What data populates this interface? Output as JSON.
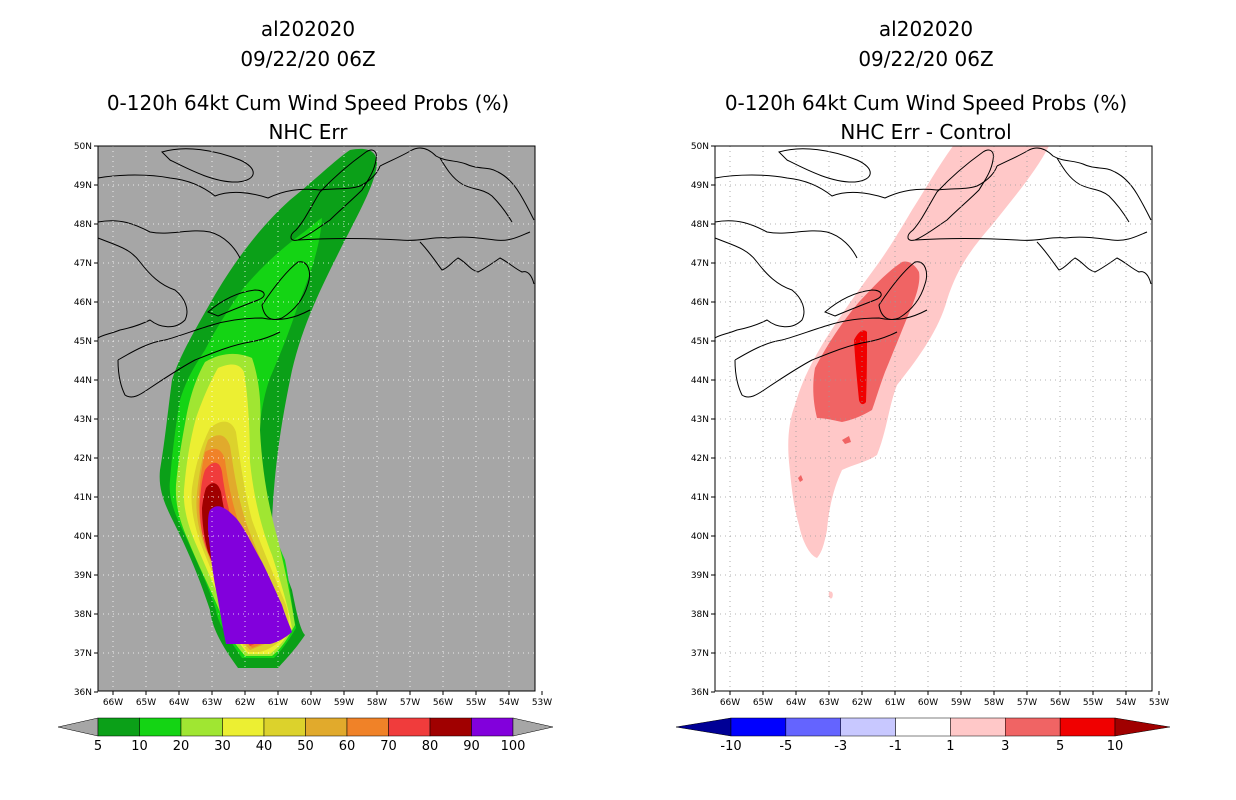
{
  "panels": [
    {
      "id": "left",
      "storm_id": "al202020",
      "datetime": "09/22/20 06Z",
      "product_title": "0-120h 64kt Cum Wind Speed Probs (%)",
      "subtitle": "NHC Err",
      "background_color": "#a6a6a6",
      "colorbar": {
        "labels": [
          "5",
          "10",
          "20",
          "30",
          "40",
          "50",
          "60",
          "70",
          "80",
          "90",
          "100"
        ],
        "colors": [
          "#a6a6a6",
          "#0ba018",
          "#14d414",
          "#a0e632",
          "#ecef32",
          "#dcd22c",
          "#e1aa2c",
          "#f08228",
          "#f03c3c",
          "#a00000",
          "#8200dc",
          "#a6a6a6"
        ]
      }
    },
    {
      "id": "right",
      "storm_id": "al202020",
      "datetime": "09/22/20 06Z",
      "product_title": "0-120h 64kt Cum Wind Speed Probs (%)",
      "subtitle": "NHC Err - Control",
      "background_color": "#ffffff",
      "colorbar": {
        "labels": [
          "-10",
          "-5",
          "-3",
          "-1",
          "1",
          "3",
          "5",
          "10"
        ],
        "colors": [
          "#000096",
          "#0000ff",
          "#6464ff",
          "#c8c8ff",
          "#ffffff",
          "#ffc8c8",
          "#f06464",
          "#f00000",
          "#a00000"
        ]
      }
    }
  ],
  "axes": {
    "lat_labels": [
      "50N",
      "49N",
      "48N",
      "47N",
      "46N",
      "45N",
      "44N",
      "43N",
      "42N",
      "41N",
      "40N",
      "39N",
      "38N",
      "37N",
      "36N"
    ],
    "lon_labels": [
      "66W",
      "65W",
      "64W",
      "63W",
      "62W",
      "61W",
      "60W",
      "59W",
      "58W",
      "57W",
      "56W",
      "55W",
      "54W",
      "53W"
    ]
  }
}
